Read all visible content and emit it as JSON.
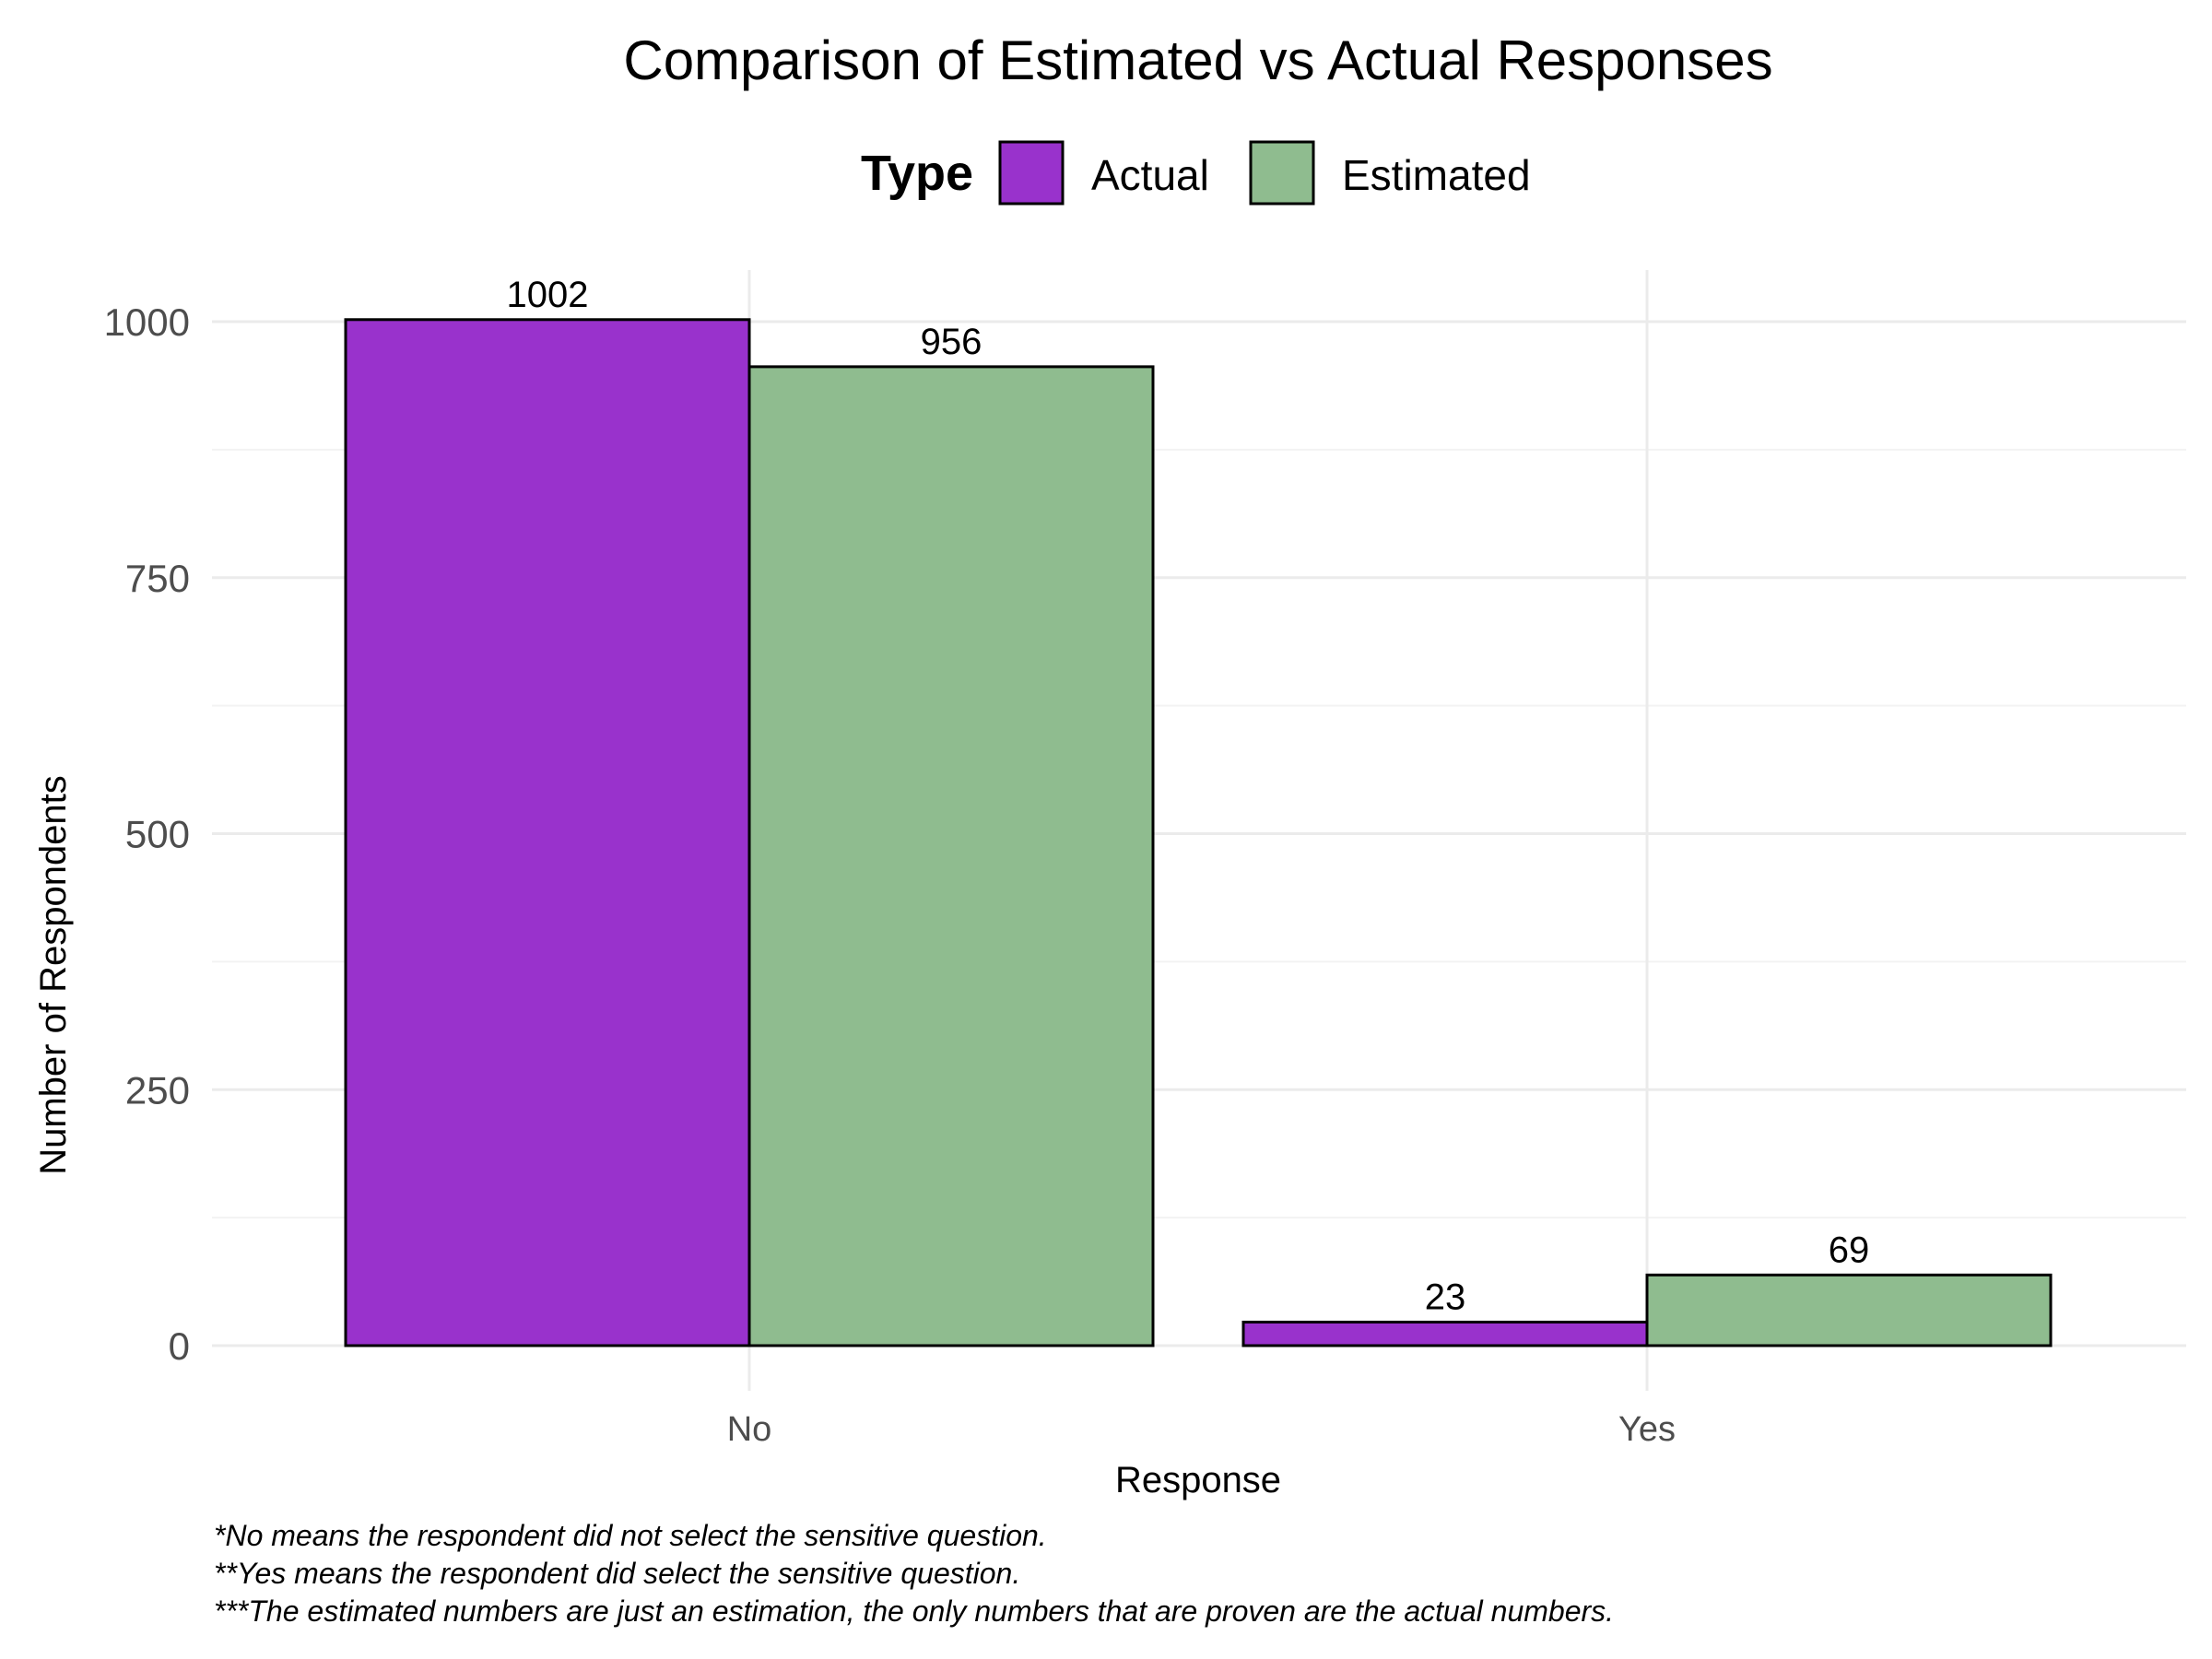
{
  "chart_data": {
    "type": "bar",
    "title": "Comparison of Estimated vs Actual Responses",
    "xlabel": "Response",
    "ylabel": "Number of Respondents",
    "categories": [
      "No",
      "Yes"
    ],
    "y_ticks": [
      0,
      250,
      500,
      750,
      1000
    ],
    "ylim": [
      0,
      1050
    ],
    "grid": true,
    "legend": {
      "title": "Type",
      "placement": "top"
    },
    "series": [
      {
        "name": "Actual",
        "color": "#9932CC",
        "values": [
          1002,
          23
        ]
      },
      {
        "name": "Estimated",
        "color": "#8FBC8F",
        "values": [
          956,
          69
        ]
      }
    ],
    "footnotes": [
      "*No means the respondent did not select the sensitive question.",
      "**Yes means the respondent did select the sensitive question.",
      "***The estimated numbers are just an estimation, the only numbers that are proven are the actual numbers."
    ]
  }
}
